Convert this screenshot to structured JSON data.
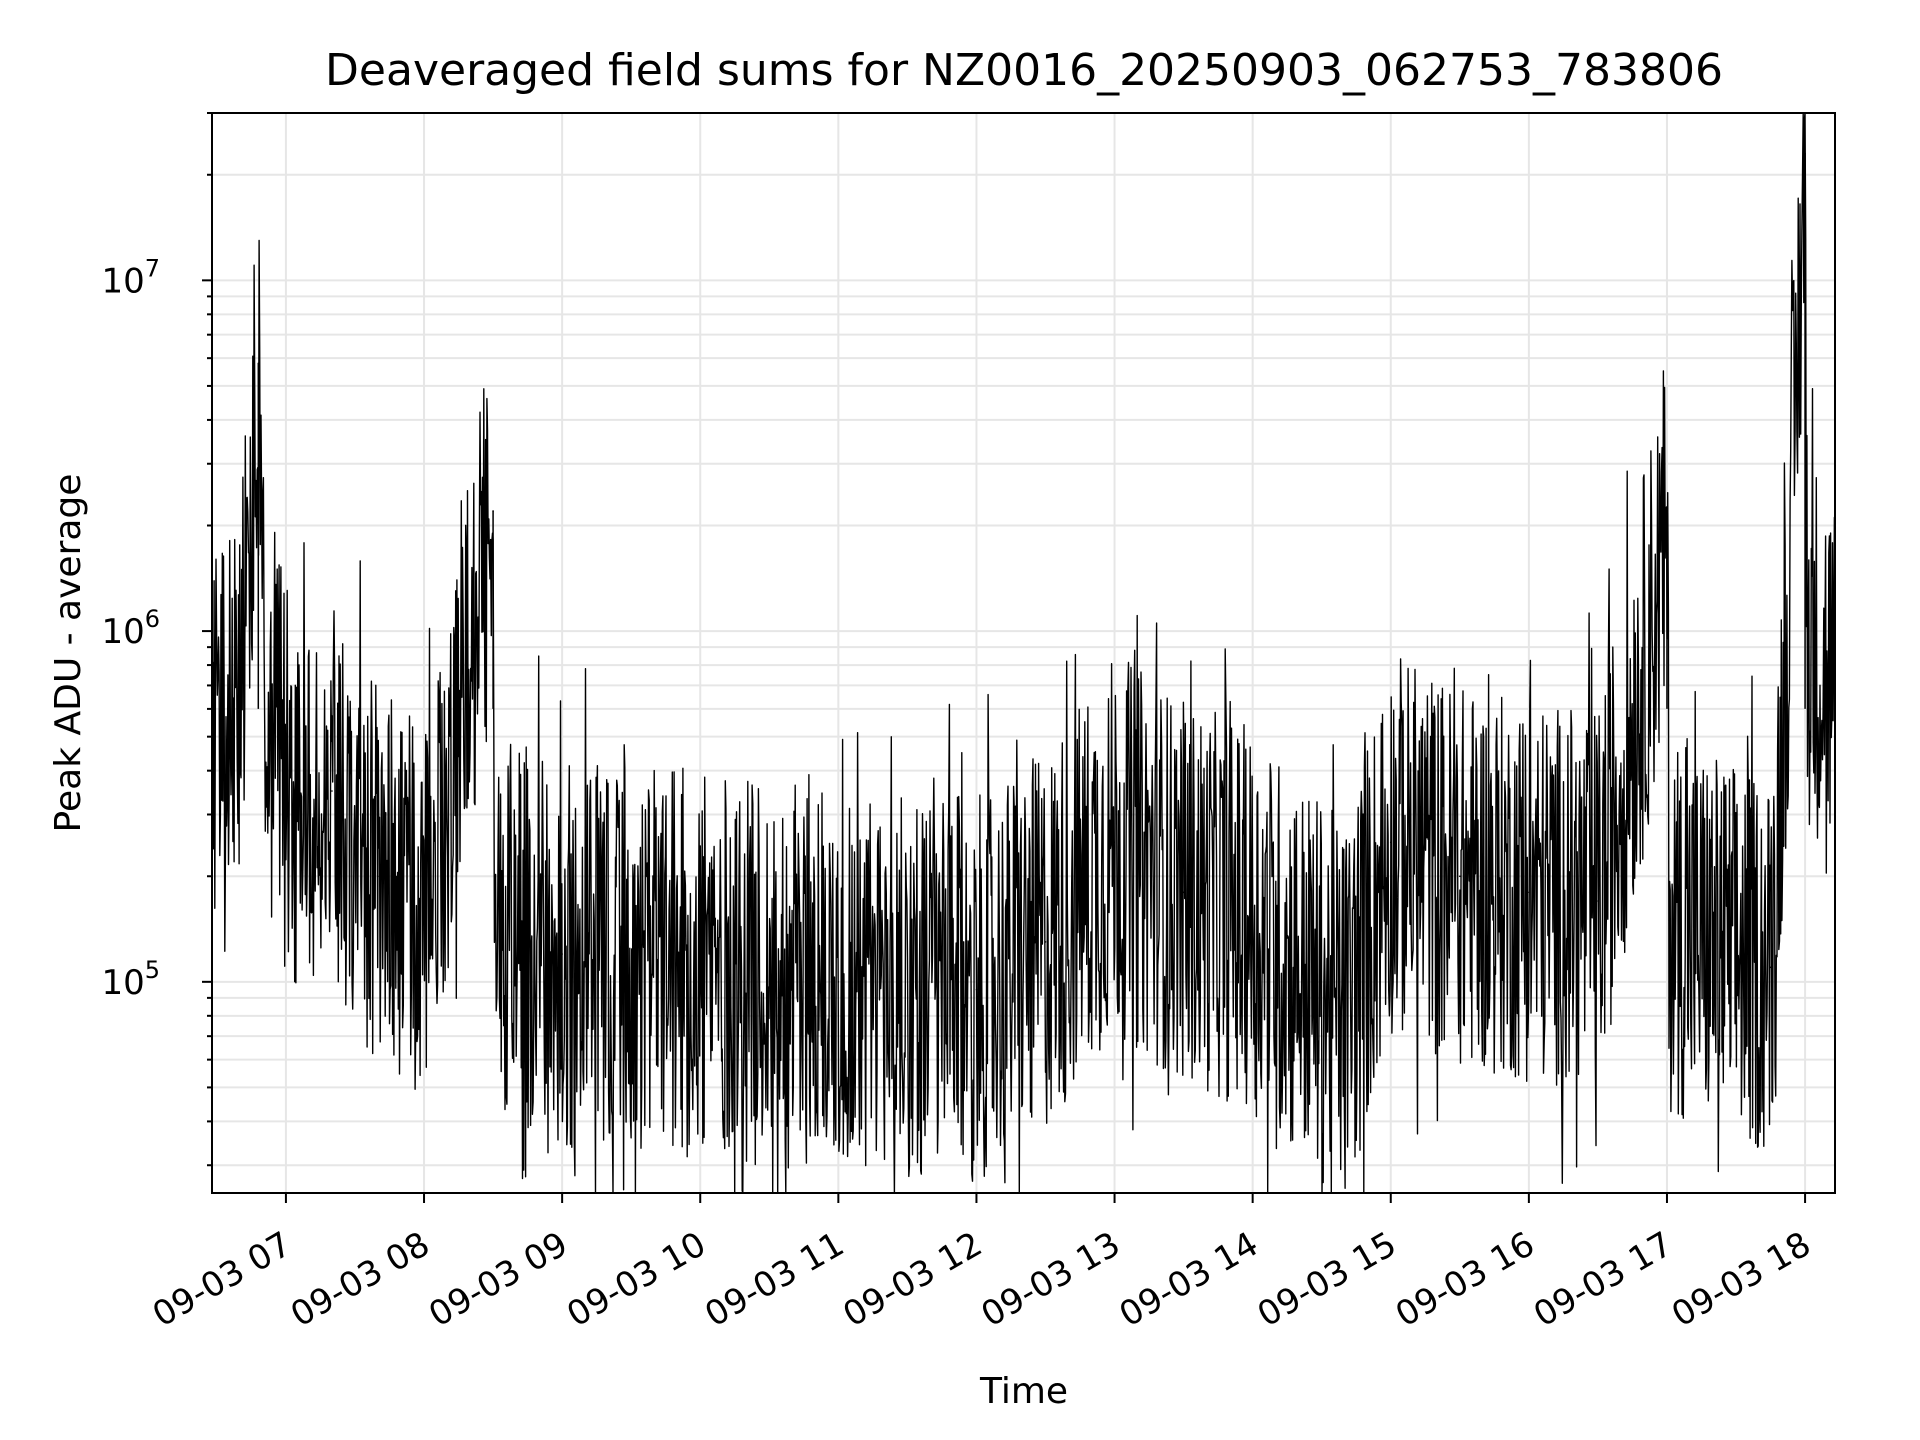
{
  "chart_data": {
    "type": "line",
    "title": "Deaveraged field sums for NZ0016_20250903_062753_783806",
    "xlabel": "Time",
    "ylabel": "Peak ADU - average",
    "yscale": "log",
    "ylim": [
      25000,
      30000000
    ],
    "xlim": [
      "2025-09-03 06:27:53",
      "2025-09-03 18:13:00"
    ],
    "grid": true,
    "x_ticks": [
      "09-03 07",
      "09-03 08",
      "09-03 09",
      "09-03 10",
      "09-03 11",
      "09-03 12",
      "09-03 13",
      "09-03 14",
      "09-03 15",
      "09-03 16",
      "09-03 17",
      "09-03 18"
    ],
    "y_ticks": [
      {
        "value": 100000,
        "base": "10",
        "exp": "5"
      },
      {
        "value": 1000000,
        "base": "10",
        "exp": "6"
      },
      {
        "value": 10000000,
        "base": "10",
        "exp": "7"
      }
    ],
    "series": [
      {
        "color": "#000000",
        "x": [
          "2025-09-03 06:28",
          "2025-09-03 06:40",
          "2025-09-03 06:48",
          "2025-09-03 06:52",
          "2025-09-03 06:55",
          "2025-09-03 07:05",
          "2025-09-03 07:20",
          "2025-09-03 07:40",
          "2025-09-03 08:00",
          "2025-09-03 08:30",
          "2025-09-03 08:31",
          "2025-09-03 09:00",
          "2025-09-03 10:00",
          "2025-09-03 11:00",
          "2025-09-03 12:00",
          "2025-09-03 12:30",
          "2025-09-03 13:00",
          "2025-09-03 13:30",
          "2025-09-03 14:00",
          "2025-09-03 14:40",
          "2025-09-03 15:00",
          "2025-09-03 15:30",
          "2025-09-03 16:00",
          "2025-09-03 16:30",
          "2025-09-03 17:00",
          "2025-09-03 17:01",
          "2025-09-03 17:30",
          "2025-09-03 17:45",
          "2025-09-03 17:52",
          "2025-09-03 18:00",
          "2025-09-03 18:01",
          "2025-09-03 18:13"
        ],
        "y": [
          500000,
          700000,
          5800000,
          400000,
          600000,
          300000,
          350000,
          200000,
          150000,
          2200000,
          150000,
          120000,
          110000,
          100000,
          95000,
          130000,
          250000,
          180000,
          150000,
          80000,
          250000,
          200000,
          180000,
          170000,
          1800000,
          150000,
          120000,
          110000,
          900000,
          23000000,
          1000000,
          700000
        ]
      }
    ]
  }
}
